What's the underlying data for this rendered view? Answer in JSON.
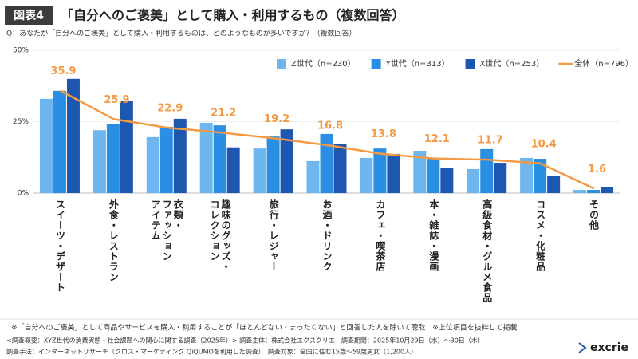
{
  "header": {
    "badge": "図表4",
    "title": "「自分へのご褒美」として購入・利用するもの（複数回答）",
    "question": "Q：あなたが「自分へのご褒美」として購入・利用するものは、どのようなものが多いですか？（複数回答）"
  },
  "chart_data": {
    "type": "bar",
    "categories": [
      "スイーツ・デザート",
      "外食・レストラン",
      "衣類・\nファッション\nアイテム",
      "趣味のグッズ・\nコレクション",
      "旅行・レジャー",
      "お酒・ドリンク",
      "カフェ・喫茶店",
      "本・雑誌・漫画",
      "高級食材・グルメ食品",
      "コスメ・化粧品",
      "その他"
    ],
    "series": [
      {
        "name": "Z世代（n=230）",
        "color": "#6db6ef",
        "values": [
          33,
          22,
          19.6,
          24.6,
          15.6,
          11.2,
          12.3,
          14.8,
          8.4,
          12.3,
          1.1
        ]
      },
      {
        "name": "Y世代（n=313）",
        "color": "#2a8fe3",
        "values": [
          35.8,
          24.3,
          23.2,
          23.7,
          19.8,
          20.7,
          15.6,
          12,
          15.4,
          12,
          1.1
        ]
      },
      {
        "name": "X世代（n=253）",
        "color": "#1d57b0",
        "values": [
          40,
          32.4,
          26,
          16,
          22.3,
          17.3,
          13.7,
          8.9,
          10.6,
          6.1,
          2.2
        ]
      },
      {
        "name": "全体（n=796）",
        "color": "#f39a45",
        "type": "line",
        "values": [
          35.9,
          25.9,
          22.9,
          21.2,
          19.2,
          16.8,
          13.8,
          12.1,
          11.7,
          10.4,
          1.6
        ]
      }
    ],
    "ylim": [
      0,
      50
    ],
    "yticks": [
      {
        "value": 0,
        "label": "0%"
      },
      {
        "value": 25,
        "label": "25%"
      },
      {
        "value": 50,
        "label": "50%"
      }
    ],
    "grid": true,
    "legend": "top-right"
  },
  "notes": [
    "※「自分へのご褒美」として商品やサービスを購入・利用することが「ほとんどない・まったくない」と回答した人を除いて聴取　※上位項目を抜粋して掲載",
    "<調査概要：XYZ世代の消費実態・社会課題への関心に関する調査（2025年）> 調査主体：株式会社エクスクリエ　調査期間：2025年10月29日（水）～30日（木）",
    "調査手法：インターネットリサーチ（クロス・マーケティング QiQUMOを利用した調査）　調査対象：全国に住む15歳～59歳男女（1,200人）"
  ],
  "logo": "excrie"
}
